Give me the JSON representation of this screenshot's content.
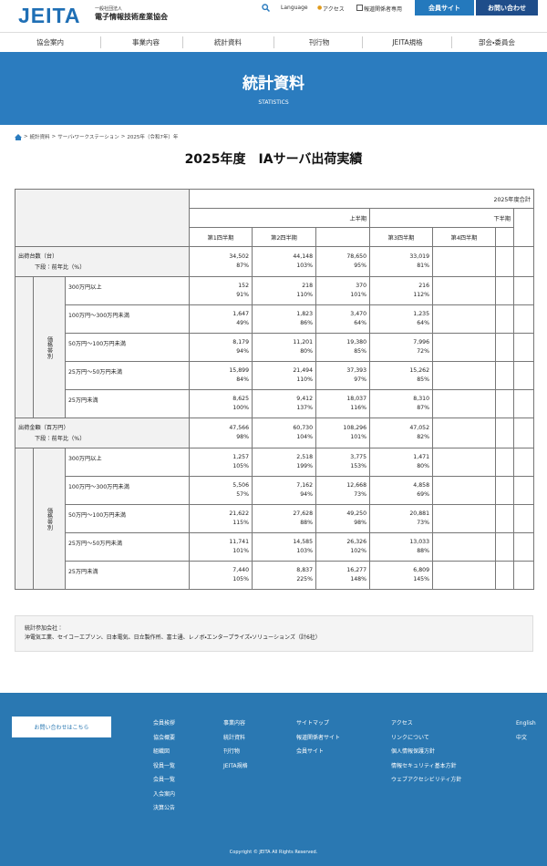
{
  "header": {
    "logo": "JEITA",
    "org_type": "一般社団法人",
    "org_name": "電子情報技術産業協会",
    "links": [
      "Language",
      "アクセス",
      "報道関係者専用"
    ],
    "buttons": [
      "会員サイト",
      "お問い合わせ"
    ]
  },
  "nav": [
    "協会案内",
    "事業内容",
    "統計資料",
    "刊行物",
    "JEITA規格",
    "部会・委員会"
  ],
  "hero": {
    "title": "統計資料",
    "subtitle": "STATISTICS"
  },
  "breadcrumb": {
    "separator": ">",
    "items": [
      "統計資料",
      "サーバ・ワークステーション",
      "2025年（令和7年）年"
    ]
  },
  "page_title": "2025年度　IAサーバ出荷実績",
  "table": {
    "header": {
      "total": "2025年度合計",
      "first_half": "上半期",
      "second_half": "下半期",
      "quarters": [
        "第1四半期",
        "第2四半期",
        "第3四半期",
        "第4四半期"
      ]
    },
    "sections": [
      {
        "label": "出荷台数（台）",
        "sublabel": "下段：前年比（%）",
        "side_label": "価格帯別",
        "total": {
          "values": [
            "34,502",
            "44,148",
            "78,650",
            "33,019"
          ],
          "ratios": [
            "87%",
            "103%",
            "95%",
            "81%"
          ]
        },
        "rows": [
          {
            "label": "300万円以上",
            "values": [
              "152",
              "218",
              "370",
              "216"
            ],
            "ratios": [
              "91%",
              "110%",
              "101%",
              "112%"
            ]
          },
          {
            "label": "100万円～300万円未満",
            "values": [
              "1,647",
              "1,823",
              "3,470",
              "1,235"
            ],
            "ratios": [
              "49%",
              "86%",
              "64%",
              "64%"
            ]
          },
          {
            "label": "50万円～100万円未満",
            "values": [
              "8,179",
              "11,201",
              "19,380",
              "7,996"
            ],
            "ratios": [
              "94%",
              "80%",
              "85%",
              "72%"
            ]
          },
          {
            "label": "25万円～50万円未満",
            "values": [
              "15,899",
              "21,494",
              "37,393",
              "15,262"
            ],
            "ratios": [
              "84%",
              "110%",
              "97%",
              "85%"
            ]
          },
          {
            "label": "25万円未満",
            "values": [
              "8,625",
              "9,412",
              "18,037",
              "8,310"
            ],
            "ratios": [
              "100%",
              "137%",
              "116%",
              "87%"
            ]
          }
        ]
      },
      {
        "label": "出荷金額（百万円）",
        "sublabel": "下段：前年比（%）",
        "side_label": "価格帯別",
        "total": {
          "values": [
            "47,566",
            "60,730",
            "108,296",
            "47,052"
          ],
          "ratios": [
            "98%",
            "104%",
            "101%",
            "82%"
          ]
        },
        "rows": [
          {
            "label": "300万円以上",
            "values": [
              "1,257",
              "2,518",
              "3,775",
              "1,471"
            ],
            "ratios": [
              "105%",
              "199%",
              "153%",
              "80%"
            ]
          },
          {
            "label": "100万円～300万円未満",
            "values": [
              "5,506",
              "7,162",
              "12,668",
              "4,858"
            ],
            "ratios": [
              "57%",
              "94%",
              "73%",
              "69%"
            ]
          },
          {
            "label": "50万円～100万円未満",
            "values": [
              "21,622",
              "27,628",
              "49,250",
              "20,881"
            ],
            "ratios": [
              "115%",
              "88%",
              "98%",
              "73%"
            ]
          },
          {
            "label": "25万円～50万円未満",
            "values": [
              "11,741",
              "14,585",
              "26,326",
              "13,033"
            ],
            "ratios": [
              "101%",
              "103%",
              "102%",
              "88%"
            ]
          },
          {
            "label": "25万円未満",
            "values": [
              "7,440",
              "8,837",
              "16,277",
              "6,809"
            ],
            "ratios": [
              "105%",
              "225%",
              "148%",
              "145%"
            ]
          }
        ]
      }
    ]
  },
  "note": {
    "label": "統計参加会社：",
    "text": "沖電気工業、セイコーエプソン、日本電気、日立製作所、富士通、レノボ・エンタープライズ・ソリューションズ（計6社）"
  },
  "footer": {
    "button": "お問い合わせはこちら",
    "columns": [
      [
        "会員挨拶",
        "協会概要",
        "組織図",
        "役員一覧",
        "会員一覧",
        "入会案内",
        "決算公告"
      ],
      [
        "事業内容",
        "統計資料",
        "刊行物",
        "JEITA規格"
      ],
      [
        "サイトマップ",
        "報道関係者サイト",
        "会員サイト"
      ],
      [
        "アクセス",
        "リンクについて",
        "個人情報保護方針",
        "情報セキュリティ基本方針",
        "ウェブアクセシビリティ方針"
      ],
      [
        "English",
        "中文"
      ]
    ],
    "copyright": "Copyright © JEITA All Rights Reserved."
  }
}
